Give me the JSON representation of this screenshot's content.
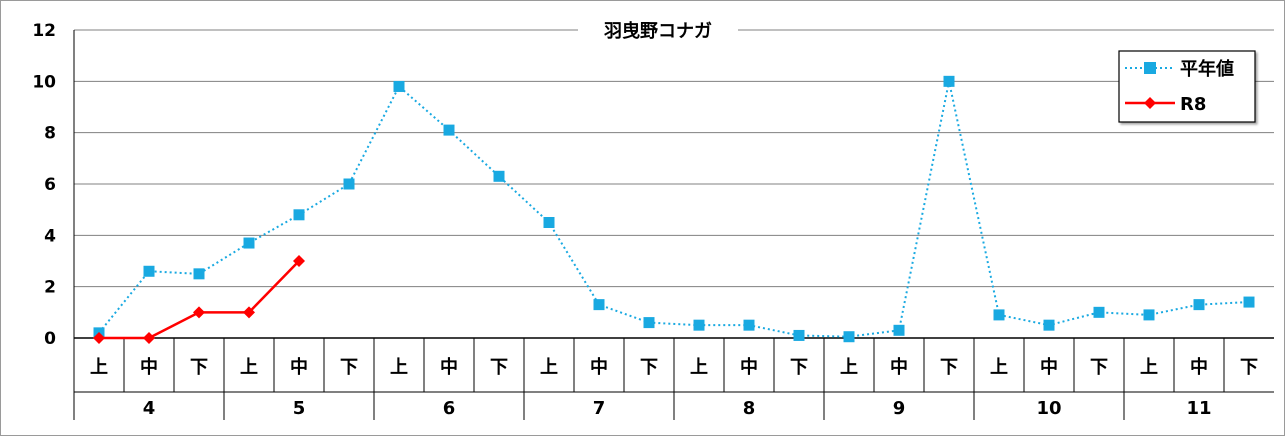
{
  "chart_data": {
    "type": "line",
    "title": "羽曳野コナガ",
    "ylim": [
      0,
      12
    ],
    "yticks": [
      0,
      2,
      4,
      6,
      8,
      10,
      12
    ],
    "grid": true,
    "legend_position": "top-right",
    "categories": [
      "上",
      "中",
      "下",
      "上",
      "中",
      "下",
      "上",
      "中",
      "下",
      "上",
      "中",
      "下",
      "上",
      "中",
      "下",
      "上",
      "中",
      "下",
      "上",
      "中",
      "下",
      "上",
      "中",
      "下"
    ],
    "month_groups": [
      {
        "label": "4",
        "count": 3
      },
      {
        "label": "5",
        "count": 3
      },
      {
        "label": "6",
        "count": 3
      },
      {
        "label": "7",
        "count": 3
      },
      {
        "label": "8",
        "count": 3
      },
      {
        "label": "9",
        "count": 3
      },
      {
        "label": "10",
        "count": 3
      },
      {
        "label": "11",
        "count": 3
      }
    ],
    "series": [
      {
        "name": "平年値",
        "color": "#19a9e1",
        "style": "dotted",
        "marker": "square",
        "values": [
          0.2,
          2.6,
          2.5,
          3.7,
          4.8,
          6.0,
          9.8,
          8.1,
          6.3,
          4.5,
          1.3,
          0.6,
          0.5,
          0.5,
          0.1,
          0.05,
          0.3,
          10.0,
          0.9,
          0.5,
          1.0,
          0.9,
          1.3,
          1.4
        ]
      },
      {
        "name": "R8",
        "color": "#ff0000",
        "style": "solid",
        "marker": "diamond",
        "values": [
          0,
          0,
          1,
          1,
          3,
          null,
          null,
          null,
          null,
          null,
          null,
          null,
          null,
          null,
          null,
          null,
          null,
          null,
          null,
          null,
          null,
          null,
          null,
          null
        ]
      }
    ]
  }
}
